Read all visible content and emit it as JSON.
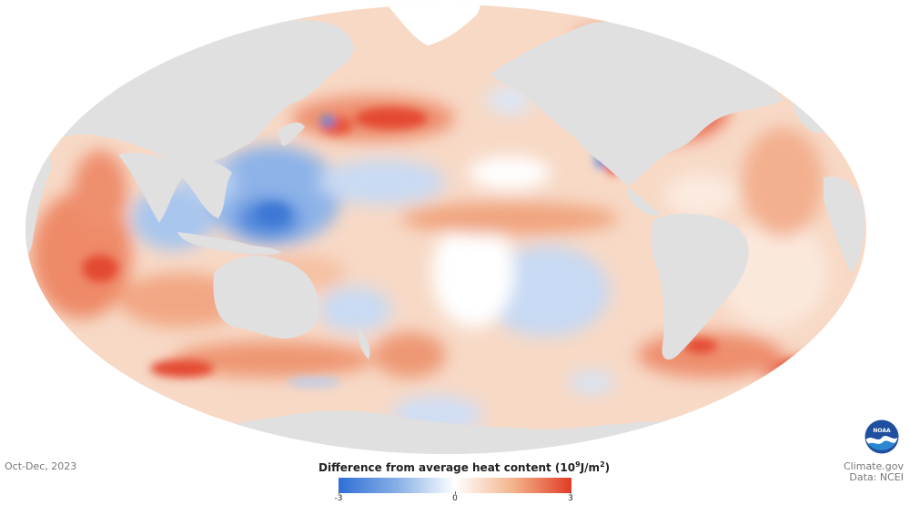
{
  "map": {
    "projection": "Mollweide",
    "land_color": "#e0e0e0",
    "ocean_neutral_color": "#ffffff",
    "warm_color": "#e13b25",
    "cool_color": "#2f6fd6"
  },
  "period_label": "Oct-Dec, 2023",
  "legend": {
    "title_prefix": "Difference from average heat content (10",
    "title_exp": "9",
    "title_mid": "J/m",
    "title_exp2": "2",
    "title_suffix": ")",
    "min_label": "-3",
    "mid_label": "0",
    "max_label": "3",
    "min_value": -3,
    "max_value": 3,
    "colors": [
      "#2f6fd6",
      "#87afe6",
      "#ffffff",
      "#f2b48c",
      "#e13b25"
    ]
  },
  "credits": {
    "line1": "Climate.gov",
    "line2": "Data: NCEI",
    "logo_text": "NOAA"
  }
}
